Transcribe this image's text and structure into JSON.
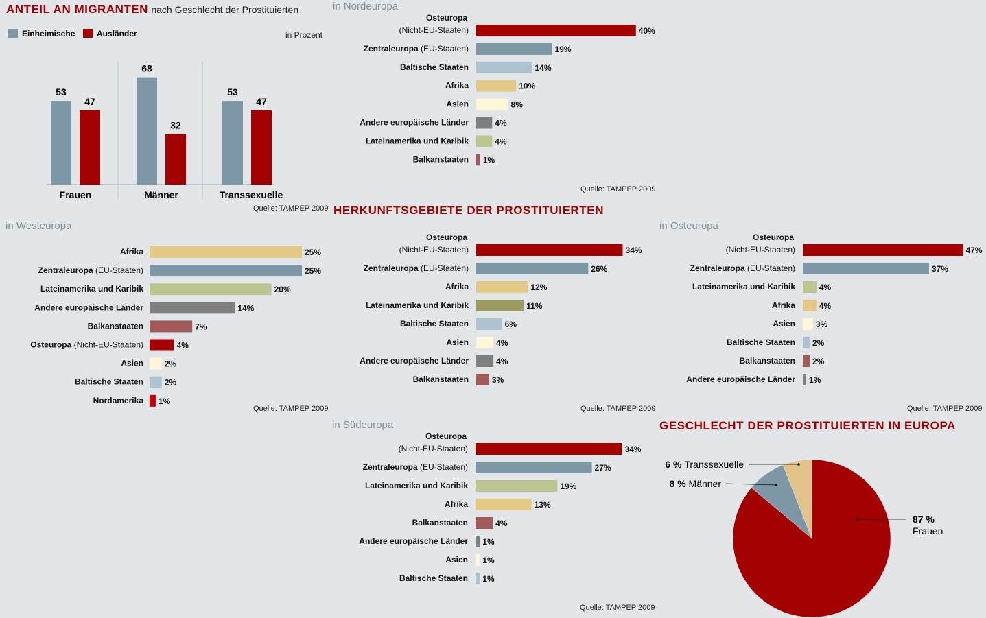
{
  "title": {
    "bold": "ANTEIL AN MIGRANTEN",
    "rest": "nach Geschlecht der Prostituierten"
  },
  "headline_herkunft": "HERKUNFTSGEBIETE DER PROSTITUIERTEN",
  "headline_geschlecht": "GESCHLECHT DER PROSTITUIERTEN IN EUROPA",
  "unit": "in Prozent",
  "source": "Quelle: TAMPEP 2009",
  "colors": {
    "einheimische": "#7d97a7",
    "auslaender": "#a30000",
    "osteuropa": "#a30000",
    "zentraleuropa": "#7d97a7",
    "baltisch": "#aec3cf",
    "afrika": "#e4c886",
    "asien": "#fdf6d8",
    "andere": "#7f7f7f",
    "latein": "#bcc58f",
    "latein_sued_europe": "#9d9b64",
    "balkan": "#a05a5a",
    "nordamerika": "#cc0000",
    "frauen": "#a30000",
    "maenner": "#7d97a7",
    "trans": "#e2c48a"
  },
  "chart_data": [
    {
      "id": "migranten",
      "type": "bar",
      "title": "ANTEIL AN MIGRANTEN nach Geschlecht der Prostituierten",
      "categories": [
        "Frauen",
        "Männer",
        "Transsexuelle"
      ],
      "series": [
        {
          "name": "Einheimische",
          "values": [
            53,
            68,
            53
          ]
        },
        {
          "name": "Ausländer",
          "values": [
            47,
            32,
            47
          ]
        }
      ],
      "ylabel": "in Prozent",
      "ylim": [
        0,
        75
      ],
      "legend": "top-left"
    },
    {
      "id": "nordeuropa",
      "type": "bar",
      "orientation": "horizontal",
      "title": "in Nordeuropa",
      "categories": [
        {
          "bold": "Osteuropa",
          "paren": "(Nicht-EU-Staaten)",
          "two_line": true
        },
        {
          "bold": "Zentraleuropa",
          "paren": "(EU-Staaten)"
        },
        {
          "bold": "Baltische Staaten"
        },
        {
          "bold": "Afrika"
        },
        {
          "bold": "Asien"
        },
        {
          "bold": "Andere europäische Länder"
        },
        {
          "bold": "Lateinamerika und Karibik"
        },
        {
          "bold": "Balkanstaaten"
        }
      ],
      "values": [
        40,
        19,
        14,
        10,
        8,
        4,
        4,
        1
      ],
      "value_labels": [
        "40%",
        "19%",
        "14%",
        "10%",
        "8%",
        "4%",
        "4%",
        "1%"
      ],
      "color_keys": [
        "osteuropa",
        "zentraleuropa",
        "baltisch",
        "afrika",
        "asien",
        "andere",
        "latein",
        "balkan"
      ]
    },
    {
      "id": "westeuropa",
      "type": "bar",
      "orientation": "horizontal",
      "title": "in Westeuropa",
      "categories": [
        {
          "bold": "Afrika"
        },
        {
          "bold": "Zentraleuropa",
          "paren": "(EU-Staaten)"
        },
        {
          "bold": "Lateinamerika und Karibik"
        },
        {
          "bold": "Andere europäische Länder"
        },
        {
          "bold": "Balkanstaaten"
        },
        {
          "bold": "Osteuropa",
          "paren": "(Nicht-EU-Staaten)"
        },
        {
          "bold": "Asien"
        },
        {
          "bold": "Baltische Staaten"
        },
        {
          "bold": "Nordamerika"
        }
      ],
      "values": [
        25,
        25,
        20,
        14,
        7,
        4,
        2,
        2,
        1
      ],
      "value_labels": [
        "25%",
        "25%",
        "20%",
        "14%",
        "7%",
        "4%",
        "2%",
        "2%",
        "1%"
      ],
      "color_keys": [
        "afrika",
        "zentraleuropa",
        "latein",
        "andere",
        "balkan",
        "osteuropa",
        "asien",
        "baltisch",
        "nordamerika"
      ]
    },
    {
      "id": "mitteleuropa",
      "type": "bar",
      "orientation": "horizontal",
      "title": "",
      "categories": [
        {
          "bold": "Osteuropa",
          "paren": "(Nicht-EU-Staaten)",
          "two_line": true
        },
        {
          "bold": "Zentraleuropa",
          "paren": "(EU-Staaten)"
        },
        {
          "bold": "Afrika"
        },
        {
          "bold": "Lateinamerika und Karibik"
        },
        {
          "bold": "Baltische Staaten"
        },
        {
          "bold": "Asien"
        },
        {
          "bold": "Andere europäische Länder"
        },
        {
          "bold": "Balkanstaaten"
        }
      ],
      "values": [
        34,
        26,
        12,
        11,
        6,
        4,
        4,
        3
      ],
      "value_labels": [
        "34%",
        "26%",
        "12%",
        "11%",
        "6%",
        "4%",
        "4%",
        "3%"
      ],
      "color_keys": [
        "osteuropa",
        "zentraleuropa",
        "afrika",
        "latein_sued_europe",
        "baltisch",
        "asien",
        "andere",
        "balkan"
      ]
    },
    {
      "id": "osteuropa",
      "type": "bar",
      "orientation": "horizontal",
      "title": "in Osteuropa",
      "categories": [
        {
          "bold": "Osteuropa",
          "paren": "(Nicht-EU-Staaten)",
          "two_line": true
        },
        {
          "bold": "Zentraleuropa",
          "paren": "(EU-Staaten)"
        },
        {
          "bold": "Lateinamerika und Karibik"
        },
        {
          "bold": "Afrika"
        },
        {
          "bold": "Asien"
        },
        {
          "bold": "Baltische Staaten"
        },
        {
          "bold": "Balkanstaaten"
        },
        {
          "bold": "Andere europäische Länder"
        }
      ],
      "values": [
        47,
        37,
        4,
        4,
        3,
        2,
        2,
        1
      ],
      "value_labels": [
        "47%",
        "37%",
        "4%",
        "4%",
        "3%",
        "2%",
        "2%",
        "1%"
      ],
      "color_keys": [
        "osteuropa",
        "zentraleuropa",
        "latein",
        "afrika",
        "asien",
        "baltisch",
        "balkan",
        "andere"
      ]
    },
    {
      "id": "suedeuropa",
      "type": "bar",
      "orientation": "horizontal",
      "title": "in Südeuropa",
      "categories": [
        {
          "bold": "Osteuropa",
          "paren": "(Nicht-EU-Staaten)",
          "two_line": true
        },
        {
          "bold": "Zentraleuropa",
          "paren": "(EU-Staaten)"
        },
        {
          "bold": "Lateinamerika und Karibik"
        },
        {
          "bold": "Afrika"
        },
        {
          "bold": "Balkanstaaten"
        },
        {
          "bold": "Andere europäische Länder"
        },
        {
          "bold": "Asien"
        },
        {
          "bold": "Baltische Staaten"
        }
      ],
      "values": [
        34,
        27,
        19,
        13,
        4,
        1,
        1,
        1
      ],
      "value_labels": [
        "34%",
        "27%",
        "19%",
        "13%",
        "4%",
        "1%",
        "1%",
        "1%"
      ],
      "color_keys": [
        "osteuropa",
        "zentraleuropa",
        "latein",
        "afrika",
        "balkan",
        "andere",
        "asien",
        "baltisch"
      ]
    },
    {
      "id": "geschlecht",
      "type": "pie",
      "title": "GESCHLECHT DER PROSTITUIERTEN IN EUROPA",
      "slices": [
        {
          "label": "Frauen",
          "value": 87,
          "pct": "87 %",
          "color_key": "frauen"
        },
        {
          "label": "Männer",
          "value": 8,
          "pct": "8 %",
          "color_key": "maenner"
        },
        {
          "label": "Transsexuelle",
          "value": 6,
          "pct": "6 %",
          "color_key": "trans"
        }
      ]
    }
  ]
}
